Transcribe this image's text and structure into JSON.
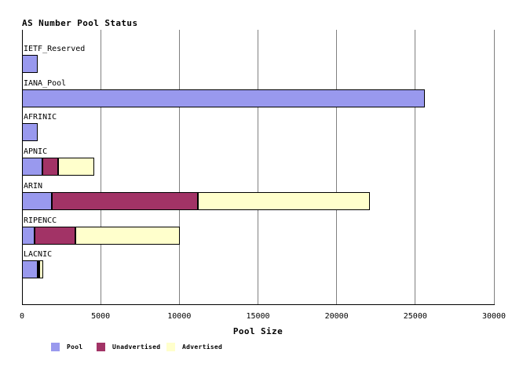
{
  "colors": {
    "pool": "#9999ee",
    "unadvertised": "#a23366",
    "advertised": "#ffffcc",
    "grid": "#808080",
    "axis": "#000000",
    "background": "#ffffff",
    "text": "#000000"
  },
  "chart_data": {
    "type": "bar",
    "orientation": "horizontal",
    "stacked": true,
    "title": "AS Number Pool Status",
    "xlabel": "Pool Size",
    "xlim": [
      0,
      30000
    ],
    "x_ticks": [
      0,
      5000,
      10000,
      15000,
      20000,
      25000,
      30000
    ],
    "grid": true,
    "legend_position": "bottom",
    "categories": [
      "IETF_Reserved",
      "IANA_Pool",
      "AFRINIC",
      "APNIC",
      "ARIN",
      "RIPENCC",
      "LACNIC"
    ],
    "series": [
      {
        "name": "Pool",
        "color": "#9999ee",
        "values": [
          1000,
          25600,
          1000,
          1300,
          1900,
          800,
          1000
        ]
      },
      {
        "name": "Unadvertised",
        "color": "#a23366",
        "values": [
          0,
          0,
          0,
          1000,
          9300,
          2600,
          100
        ]
      },
      {
        "name": "Advertised",
        "color": "#ffffcc",
        "values": [
          0,
          0,
          0,
          2300,
          10900,
          6650,
          250
        ]
      }
    ]
  }
}
